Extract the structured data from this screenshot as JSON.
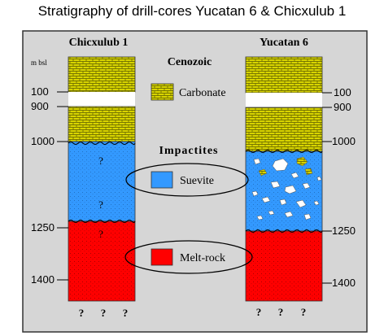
{
  "title": "Stratigraphy of drill-cores Yucatan 6 & Chicxulub 1",
  "cores": {
    "left": {
      "name": "Chicxulub 1",
      "questions_mid": [
        "?",
        "?",
        "?"
      ],
      "bottom_questions": [
        "?",
        "?",
        "?"
      ]
    },
    "right": {
      "name": "Yucatan 6",
      "bottom_questions": [
        "?",
        "?",
        "?"
      ]
    }
  },
  "depth_unit": "m bsl",
  "depth_labels": {
    "left": [
      "100",
      "900",
      "1000",
      "1250",
      "1400"
    ],
    "right": [
      "100",
      "900",
      "1000",
      "1250",
      "1400"
    ]
  },
  "legend": {
    "cenozoic": "Cenozoic",
    "carbonate": "Carbonate",
    "impactites": "Impactites",
    "suevite": "Suevite",
    "melt_rock": "Melt-rock"
  },
  "colors": {
    "carbonate": "#d8d400",
    "suevite": "#3399ff",
    "melt_rock": "#ff0000",
    "panel_bg": "#d6d6d6",
    "border": "#333333"
  }
}
